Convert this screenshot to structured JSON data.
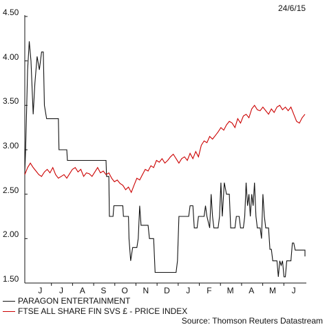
{
  "header": {
    "date": "24/6/15"
  },
  "legend": [
    {
      "label": "PARAGON ENTERTAINMENT",
      "color": "#111111"
    },
    {
      "label": "FTSE ALL SHARE FIN SVS £ - PRICE INDEX",
      "color": "#cc0000"
    }
  ],
  "source": "Source: Thomson Reuters Datastream",
  "chart_data": {
    "type": "line",
    "title": "",
    "xlabel": "",
    "ylabel": "",
    "ylim": [
      1.5,
      4.5
    ],
    "y_ticks": [
      "4.50",
      "4.00",
      "3.50",
      "3.00",
      "2.50",
      "2.00",
      "1.50"
    ],
    "x_ticks": [
      "J",
      "J",
      "A",
      "S",
      "O",
      "N",
      "D",
      "J",
      "F",
      "M",
      "A",
      "M",
      "J"
    ],
    "grid": false,
    "legend_position": "bottom-left",
    "series": [
      {
        "name": "PARAGON ENTERTAINMENT",
        "color": "#111111",
        "points": [
          [
            0.0,
            2.75
          ],
          [
            0.003,
            3.0
          ],
          [
            0.01,
            3.9
          ],
          [
            0.016,
            4.22
          ],
          [
            0.022,
            4.0
          ],
          [
            0.03,
            3.4
          ],
          [
            0.036,
            3.75
          ],
          [
            0.044,
            4.05
          ],
          [
            0.052,
            3.9
          ],
          [
            0.06,
            4.1
          ],
          [
            0.066,
            4.1
          ],
          [
            0.07,
            3.5
          ],
          [
            0.078,
            3.35
          ],
          [
            0.09,
            3.35
          ],
          [
            0.12,
            3.35
          ],
          [
            0.122,
            3.0
          ],
          [
            0.15,
            3.0
          ],
          [
            0.152,
            2.88
          ],
          [
            0.29,
            2.88
          ],
          [
            0.292,
            2.7
          ],
          [
            0.3,
            2.7
          ],
          [
            0.302,
            2.25
          ],
          [
            0.315,
            2.25
          ],
          [
            0.318,
            2.37
          ],
          [
            0.35,
            2.37
          ],
          [
            0.352,
            2.25
          ],
          [
            0.37,
            2.25
          ],
          [
            0.372,
            2.0
          ],
          [
            0.378,
            1.75
          ],
          [
            0.385,
            1.9
          ],
          [
            0.4,
            1.9
          ],
          [
            0.405,
            2.0
          ],
          [
            0.41,
            2.37
          ],
          [
            0.415,
            2.15
          ],
          [
            0.44,
            2.15
          ],
          [
            0.445,
            2.0
          ],
          [
            0.46,
            2.0
          ],
          [
            0.465,
            1.62
          ],
          [
            0.54,
            1.62
          ],
          [
            0.545,
            1.75
          ],
          [
            0.55,
            2.25
          ],
          [
            0.585,
            2.25
          ],
          [
            0.59,
            2.37
          ],
          [
            0.6,
            2.37
          ],
          [
            0.605,
            2.12
          ],
          [
            0.615,
            2.12
          ],
          [
            0.62,
            2.25
          ],
          [
            0.64,
            2.25
          ],
          [
            0.645,
            2.37
          ],
          [
            0.65,
            2.25
          ],
          [
            0.66,
            2.12
          ],
          [
            0.665,
            2.5
          ],
          [
            0.67,
            2.25
          ],
          [
            0.675,
            2.12
          ],
          [
            0.69,
            2.12
          ],
          [
            0.695,
            2.25
          ],
          [
            0.7,
            2.63
          ],
          [
            0.705,
            2.25
          ],
          [
            0.712,
            2.63
          ],
          [
            0.72,
            2.5
          ],
          [
            0.73,
            2.5
          ],
          [
            0.735,
            2.12
          ],
          [
            0.75,
            2.12
          ],
          [
            0.755,
            2.25
          ],
          [
            0.765,
            2.25
          ],
          [
            0.77,
            2.12
          ],
          [
            0.78,
            2.12
          ],
          [
            0.785,
            2.25
          ],
          [
            0.79,
            2.63
          ],
          [
            0.795,
            2.37
          ],
          [
            0.8,
            2.5
          ],
          [
            0.805,
            2.25
          ],
          [
            0.81,
            2.5
          ],
          [
            0.815,
            2.37
          ],
          [
            0.82,
            2.63
          ],
          [
            0.825,
            2.25
          ],
          [
            0.83,
            2.12
          ],
          [
            0.84,
            2.12
          ],
          [
            0.845,
            2.0
          ],
          [
            0.85,
            2.5
          ],
          [
            0.855,
            2.25
          ],
          [
            0.86,
            2.12
          ],
          [
            0.87,
            2.12
          ],
          [
            0.875,
            1.88
          ],
          [
            0.88,
            1.88
          ],
          [
            0.885,
            1.75
          ],
          [
            0.9,
            1.75
          ],
          [
            0.905,
            1.57
          ],
          [
            0.91,
            1.75
          ],
          [
            0.915,
            1.7
          ],
          [
            0.92,
            1.75
          ],
          [
            0.925,
            1.57
          ],
          [
            0.93,
            1.57
          ],
          [
            0.935,
            1.75
          ],
          [
            0.95,
            1.75
          ],
          [
            0.955,
            1.95
          ],
          [
            0.96,
            1.95
          ],
          [
            0.965,
            1.87
          ],
          [
            1.0,
            1.87
          ],
          [
            1.0,
            1.8
          ]
        ]
      },
      {
        "name": "FTSE ALL SHARE FIN SVS £ - PRICE INDEX",
        "color": "#cc0000",
        "points": [
          [
            0.0,
            2.72
          ],
          [
            0.01,
            2.8
          ],
          [
            0.02,
            2.85
          ],
          [
            0.03,
            2.8
          ],
          [
            0.04,
            2.76
          ],
          [
            0.05,
            2.72
          ],
          [
            0.06,
            2.7
          ],
          [
            0.07,
            2.75
          ],
          [
            0.08,
            2.78
          ],
          [
            0.09,
            2.74
          ],
          [
            0.1,
            2.8
          ],
          [
            0.11,
            2.72
          ],
          [
            0.12,
            2.68
          ],
          [
            0.13,
            2.7
          ],
          [
            0.14,
            2.72
          ],
          [
            0.15,
            2.68
          ],
          [
            0.16,
            2.73
          ],
          [
            0.17,
            2.78
          ],
          [
            0.18,
            2.8
          ],
          [
            0.19,
            2.75
          ],
          [
            0.2,
            2.78
          ],
          [
            0.21,
            2.7
          ],
          [
            0.22,
            2.74
          ],
          [
            0.23,
            2.73
          ],
          [
            0.24,
            2.7
          ],
          [
            0.25,
            2.75
          ],
          [
            0.26,
            2.8
          ],
          [
            0.27,
            2.74
          ],
          [
            0.28,
            2.76
          ],
          [
            0.29,
            2.72
          ],
          [
            0.3,
            2.74
          ],
          [
            0.31,
            2.68
          ],
          [
            0.32,
            2.64
          ],
          [
            0.33,
            2.66
          ],
          [
            0.34,
            2.62
          ],
          [
            0.35,
            2.6
          ],
          [
            0.36,
            2.55
          ],
          [
            0.37,
            2.58
          ],
          [
            0.38,
            2.52
          ],
          [
            0.39,
            2.6
          ],
          [
            0.4,
            2.68
          ],
          [
            0.41,
            2.66
          ],
          [
            0.42,
            2.72
          ],
          [
            0.43,
            2.78
          ],
          [
            0.44,
            2.76
          ],
          [
            0.45,
            2.82
          ],
          [
            0.46,
            2.8
          ],
          [
            0.47,
            2.88
          ],
          [
            0.48,
            2.86
          ],
          [
            0.49,
            2.9
          ],
          [
            0.5,
            2.85
          ],
          [
            0.51,
            2.88
          ],
          [
            0.52,
            2.92
          ],
          [
            0.53,
            2.95
          ],
          [
            0.54,
            2.9
          ],
          [
            0.55,
            2.85
          ],
          [
            0.56,
            2.9
          ],
          [
            0.57,
            2.92
          ],
          [
            0.58,
            2.88
          ],
          [
            0.59,
            2.96
          ],
          [
            0.6,
            2.9
          ],
          [
            0.61,
            2.98
          ],
          [
            0.62,
            2.92
          ],
          [
            0.63,
            3.05
          ],
          [
            0.64,
            3.1
          ],
          [
            0.65,
            3.08
          ],
          [
            0.66,
            3.15
          ],
          [
            0.67,
            3.12
          ],
          [
            0.68,
            3.16
          ],
          [
            0.69,
            3.2
          ],
          [
            0.7,
            3.25
          ],
          [
            0.71,
            3.22
          ],
          [
            0.72,
            3.28
          ],
          [
            0.73,
            3.32
          ],
          [
            0.74,
            3.3
          ],
          [
            0.75,
            3.25
          ],
          [
            0.76,
            3.35
          ],
          [
            0.77,
            3.3
          ],
          [
            0.78,
            3.38
          ],
          [
            0.79,
            3.4
          ],
          [
            0.8,
            3.36
          ],
          [
            0.81,
            3.46
          ],
          [
            0.82,
            3.5
          ],
          [
            0.83,
            3.45
          ],
          [
            0.84,
            3.44
          ],
          [
            0.85,
            3.48
          ],
          [
            0.86,
            3.44
          ],
          [
            0.87,
            3.4
          ],
          [
            0.88,
            3.46
          ],
          [
            0.89,
            3.42
          ],
          [
            0.9,
            3.48
          ],
          [
            0.91,
            3.5
          ],
          [
            0.92,
            3.45
          ],
          [
            0.93,
            3.48
          ],
          [
            0.94,
            3.44
          ],
          [
            0.95,
            3.48
          ],
          [
            0.96,
            3.4
          ],
          [
            0.97,
            3.32
          ],
          [
            0.98,
            3.3
          ],
          [
            0.99,
            3.36
          ],
          [
            1.0,
            3.4
          ]
        ]
      }
    ]
  }
}
